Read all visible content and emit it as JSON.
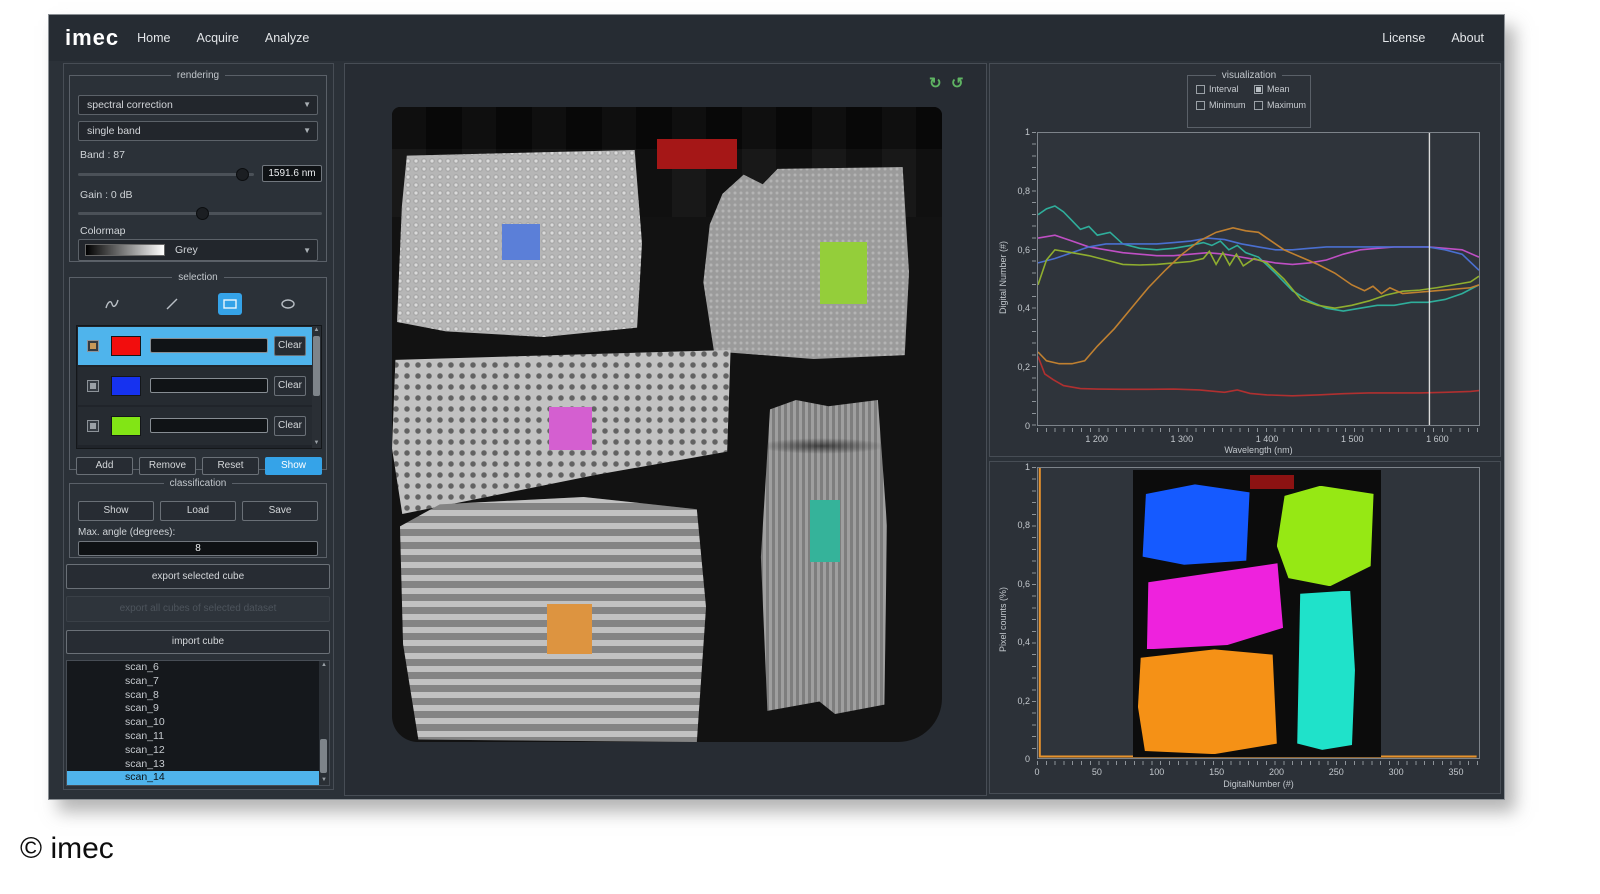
{
  "app": {
    "logo": "imec",
    "menu": [
      "Home",
      "Acquire",
      "Analyze"
    ],
    "menu_right": [
      "License",
      "About"
    ],
    "footer_copyright": "© imec"
  },
  "rendering": {
    "legend": "rendering",
    "correction_value": "spectral correction",
    "band_mode_value": "single band",
    "band_label": "Band : 87",
    "band_value": "1591.6 nm",
    "gain_label": "Gain : 0 dB",
    "colormap_label": "Colormap",
    "colormap_value": "Grey"
  },
  "selection": {
    "legend": "selection",
    "rows": [
      {
        "color": "#f20d0d",
        "clear_label": "Clear",
        "selected": true
      },
      {
        "color": "#1632f0",
        "clear_label": "Clear",
        "selected": false
      },
      {
        "color": "#82e515",
        "clear_label": "Clear",
        "selected": false
      }
    ],
    "buttons": [
      {
        "label": "Add",
        "active": false
      },
      {
        "label": "Remove",
        "active": false
      },
      {
        "label": "Reset",
        "active": false
      },
      {
        "label": "Show",
        "active": true
      }
    ]
  },
  "classification": {
    "legend": "classification",
    "buttons": [
      "Show",
      "Load",
      "Save"
    ],
    "max_angle_label": "Max. angle (degrees):",
    "max_angle_value": "8",
    "export_selected_label": "export selected cube",
    "export_all_label": "export all cubes of selected dataset",
    "import_label": "import cube"
  },
  "scans": {
    "items": [
      {
        "label": "scan_6",
        "selected": false
      },
      {
        "label": "scan_7",
        "selected": false
      },
      {
        "label": "scan_8",
        "selected": false
      },
      {
        "label": "scan_9",
        "selected": false
      },
      {
        "label": "scan_10",
        "selected": false
      },
      {
        "label": "scan_11",
        "selected": false
      },
      {
        "label": "scan_12",
        "selected": false
      },
      {
        "label": "scan_13",
        "selected": false
      },
      {
        "label": "scan_14",
        "selected": true
      }
    ]
  },
  "visualization": {
    "legend": "visualization",
    "options": [
      {
        "label": "Interval",
        "checked": false
      },
      {
        "label": "Mean",
        "checked": true
      },
      {
        "label": "Minimum",
        "checked": false
      },
      {
        "label": "Maximum",
        "checked": false
      }
    ]
  },
  "image_overlays": {
    "selection_rects": {
      "red": "#a51717",
      "blue": "#5b7fd8",
      "green": "#94ce3a",
      "magenta": "#d45fd0",
      "teal": "#35b39a",
      "orange": "#dd9440"
    },
    "classified_regions": {
      "blue": "#155aff",
      "green": "#96e814",
      "magenta": "#ee22dd",
      "cyan": "#1fe2ca",
      "orange": "#f59116",
      "darkred": "#8c1212"
    }
  },
  "chart_data": [
    {
      "type": "line",
      "xlabel": "Wavelength (nm)",
      "ylabel": "Digital Number (#)",
      "xlim": [
        1130,
        1650
      ],
      "ylim": [
        0,
        1
      ],
      "grid": false,
      "legend": "none",
      "cursor_x": 1591.6,
      "xticks": [
        {
          "label": "1 200",
          "value": 1200
        },
        {
          "label": "1 300",
          "value": 1300
        },
        {
          "label": "1 400",
          "value": 1400
        },
        {
          "label": "1 500",
          "value": 1500
        },
        {
          "label": "1 600",
          "value": 1600
        }
      ],
      "yticks": [
        {
          "label": "0",
          "value": 0
        },
        {
          "label": "0,2",
          "value": 0.2
        },
        {
          "label": "0,4",
          "value": 0.4
        },
        {
          "label": "0,6",
          "value": 0.6
        },
        {
          "label": "0,8",
          "value": 0.8
        },
        {
          "label": "1",
          "value": 1
        }
      ],
      "series": [
        {
          "name": "teal-mean",
          "color": "#2fae9b",
          "x": [
            1130,
            1140,
            1150,
            1160,
            1170,
            1180,
            1190,
            1200,
            1215,
            1230,
            1250,
            1270,
            1290,
            1310,
            1325,
            1335,
            1345,
            1355,
            1365,
            1375,
            1390,
            1410,
            1430,
            1450,
            1470,
            1490,
            1510,
            1530,
            1550,
            1570,
            1590,
            1610,
            1630,
            1650
          ],
          "y": [
            0.72,
            0.74,
            0.75,
            0.73,
            0.7,
            0.67,
            0.68,
            0.65,
            0.66,
            0.62,
            0.605,
            0.6,
            0.605,
            0.615,
            0.625,
            0.615,
            0.63,
            0.6,
            0.615,
            0.59,
            0.575,
            0.52,
            0.46,
            0.425,
            0.4,
            0.39,
            0.4,
            0.41,
            0.41,
            0.42,
            0.42,
            0.43,
            0.45,
            0.48
          ]
        },
        {
          "name": "magenta-mean",
          "color": "#bf4fc4",
          "x": [
            1130,
            1150,
            1170,
            1190,
            1210,
            1230,
            1250,
            1270,
            1290,
            1310,
            1330,
            1350,
            1370,
            1390,
            1410,
            1430,
            1450,
            1470,
            1490,
            1510,
            1530,
            1550,
            1570,
            1590,
            1610,
            1630,
            1650
          ],
          "y": [
            0.64,
            0.65,
            0.63,
            0.61,
            0.6,
            0.59,
            0.585,
            0.58,
            0.58,
            0.585,
            0.59,
            0.585,
            0.575,
            0.565,
            0.555,
            0.55,
            0.555,
            0.565,
            0.585,
            0.6,
            0.605,
            0.61,
            0.61,
            0.61,
            0.605,
            0.6,
            0.575
          ]
        },
        {
          "name": "blue-mean",
          "color": "#4a6fd0",
          "x": [
            1130,
            1150,
            1170,
            1190,
            1210,
            1230,
            1250,
            1270,
            1290,
            1310,
            1330,
            1350,
            1370,
            1390,
            1410,
            1430,
            1450,
            1470,
            1490,
            1510,
            1530,
            1550,
            1570,
            1590,
            1610,
            1630,
            1650
          ],
          "y": [
            0.555,
            0.57,
            0.59,
            0.61,
            0.62,
            0.62,
            0.62,
            0.62,
            0.625,
            0.63,
            0.64,
            0.635,
            0.62,
            0.61,
            0.6,
            0.6,
            0.605,
            0.61,
            0.61,
            0.61,
            0.61,
            0.61,
            0.61,
            0.61,
            0.6,
            0.585,
            0.53
          ]
        },
        {
          "name": "green-mean",
          "color": "#8fae2f",
          "x": [
            1130,
            1140,
            1150,
            1170,
            1190,
            1210,
            1230,
            1250,
            1270,
            1290,
            1310,
            1325,
            1332,
            1340,
            1348,
            1356,
            1364,
            1372,
            1385,
            1400,
            1420,
            1440,
            1460,
            1480,
            1500,
            1520,
            1540,
            1560,
            1580,
            1600,
            1620,
            1640,
            1650
          ],
          "y": [
            0.48,
            0.565,
            0.6,
            0.59,
            0.58,
            0.565,
            0.55,
            0.548,
            0.55,
            0.555,
            0.56,
            0.57,
            0.595,
            0.55,
            0.59,
            0.548,
            0.585,
            0.545,
            0.57,
            0.555,
            0.5,
            0.43,
            0.41,
            0.4,
            0.41,
            0.425,
            0.445,
            0.458,
            0.462,
            0.47,
            0.48,
            0.49,
            0.51
          ]
        },
        {
          "name": "orange-mean",
          "color": "#c08030",
          "x": [
            1130,
            1140,
            1155,
            1170,
            1185,
            1200,
            1220,
            1240,
            1260,
            1280,
            1300,
            1320,
            1340,
            1360,
            1375,
            1390,
            1405,
            1420,
            1440,
            1460,
            1480,
            1500,
            1515,
            1525,
            1535,
            1545,
            1560,
            1580,
            1600,
            1620,
            1640,
            1650
          ],
          "y": [
            0.25,
            0.22,
            0.21,
            0.21,
            0.22,
            0.27,
            0.33,
            0.4,
            0.47,
            0.53,
            0.585,
            0.63,
            0.66,
            0.675,
            0.665,
            0.66,
            0.63,
            0.6,
            0.575,
            0.55,
            0.52,
            0.48,
            0.46,
            0.475,
            0.45,
            0.47,
            0.45,
            0.455,
            0.46,
            0.465,
            0.47,
            0.48
          ]
        },
        {
          "name": "red-mean",
          "color": "#b03030",
          "x": [
            1130,
            1138,
            1148,
            1160,
            1180,
            1200,
            1230,
            1260,
            1290,
            1320,
            1350,
            1365,
            1380,
            1400,
            1430,
            1460,
            1490,
            1520,
            1550,
            1580,
            1610,
            1640,
            1650
          ],
          "y": [
            0.235,
            0.175,
            0.155,
            0.135,
            0.125,
            0.123,
            0.122,
            0.122,
            0.123,
            0.12,
            0.112,
            0.12,
            0.108,
            0.103,
            0.1,
            0.103,
            0.107,
            0.11,
            0.11,
            0.11,
            0.112,
            0.115,
            0.118
          ]
        }
      ]
    },
    {
      "type": "line",
      "xlabel": "DigitalNumber (#)",
      "ylabel": "Pixel counts (%)",
      "xlim": [
        0,
        370
      ],
      "ylim": [
        0,
        1
      ],
      "grid": false,
      "legend": "none",
      "xticks": [
        {
          "label": "0",
          "value": 0
        },
        {
          "label": "50",
          "value": 50
        },
        {
          "label": "100",
          "value": 100
        },
        {
          "label": "150",
          "value": 150
        },
        {
          "label": "200",
          "value": 200
        },
        {
          "label": "250",
          "value": 250
        },
        {
          "label": "300",
          "value": 300
        },
        {
          "label": "350",
          "value": 350
        }
      ],
      "yticks": [
        {
          "label": "0",
          "value": 0
        },
        {
          "label": "0,2",
          "value": 0.2
        },
        {
          "label": "0,4",
          "value": 0.4
        },
        {
          "label": "0,6",
          "value": 0.6
        },
        {
          "label": "0,8",
          "value": 0.8
        },
        {
          "label": "1",
          "value": 1
        }
      ],
      "series": [
        {
          "name": "pixel-count-histogram",
          "color": "#e8932c",
          "width": 2,
          "x": [
            1.5,
            1.5,
            368
          ],
          "y": [
            1.0,
            0.005,
            0.005
          ]
        }
      ]
    }
  ]
}
